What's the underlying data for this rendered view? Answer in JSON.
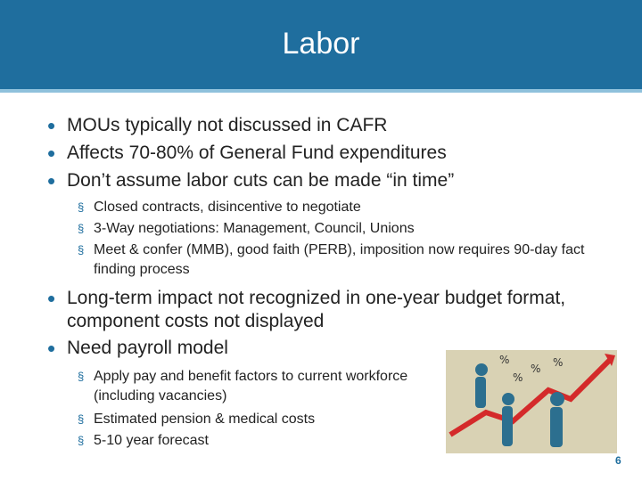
{
  "header": {
    "title": "Labor"
  },
  "bullets": [
    {
      "text": "MOUs typically not discussed in CAFR"
    },
    {
      "text": "Affects 70-80% of General Fund expenditures"
    },
    {
      "text": "Don’t assume labor cuts can be made “in time”",
      "sub": [
        "Closed contracts, disincentive to negotiate",
        "3-Way negotiations: Management, Council, Unions",
        "Meet & confer (MMB), good faith (PERB), imposition now requires 90-day fact finding process"
      ]
    },
    {
      "text": "Long-term impact not recognized in one-year budget format, component costs not displayed"
    },
    {
      "text": "Need payroll model",
      "sub": [
        "Apply pay and benefit factors to current workforce (including vacancies)",
        "Estimated pension & medical costs",
        "5-10 year forecast"
      ]
    }
  ],
  "page_number": "6"
}
